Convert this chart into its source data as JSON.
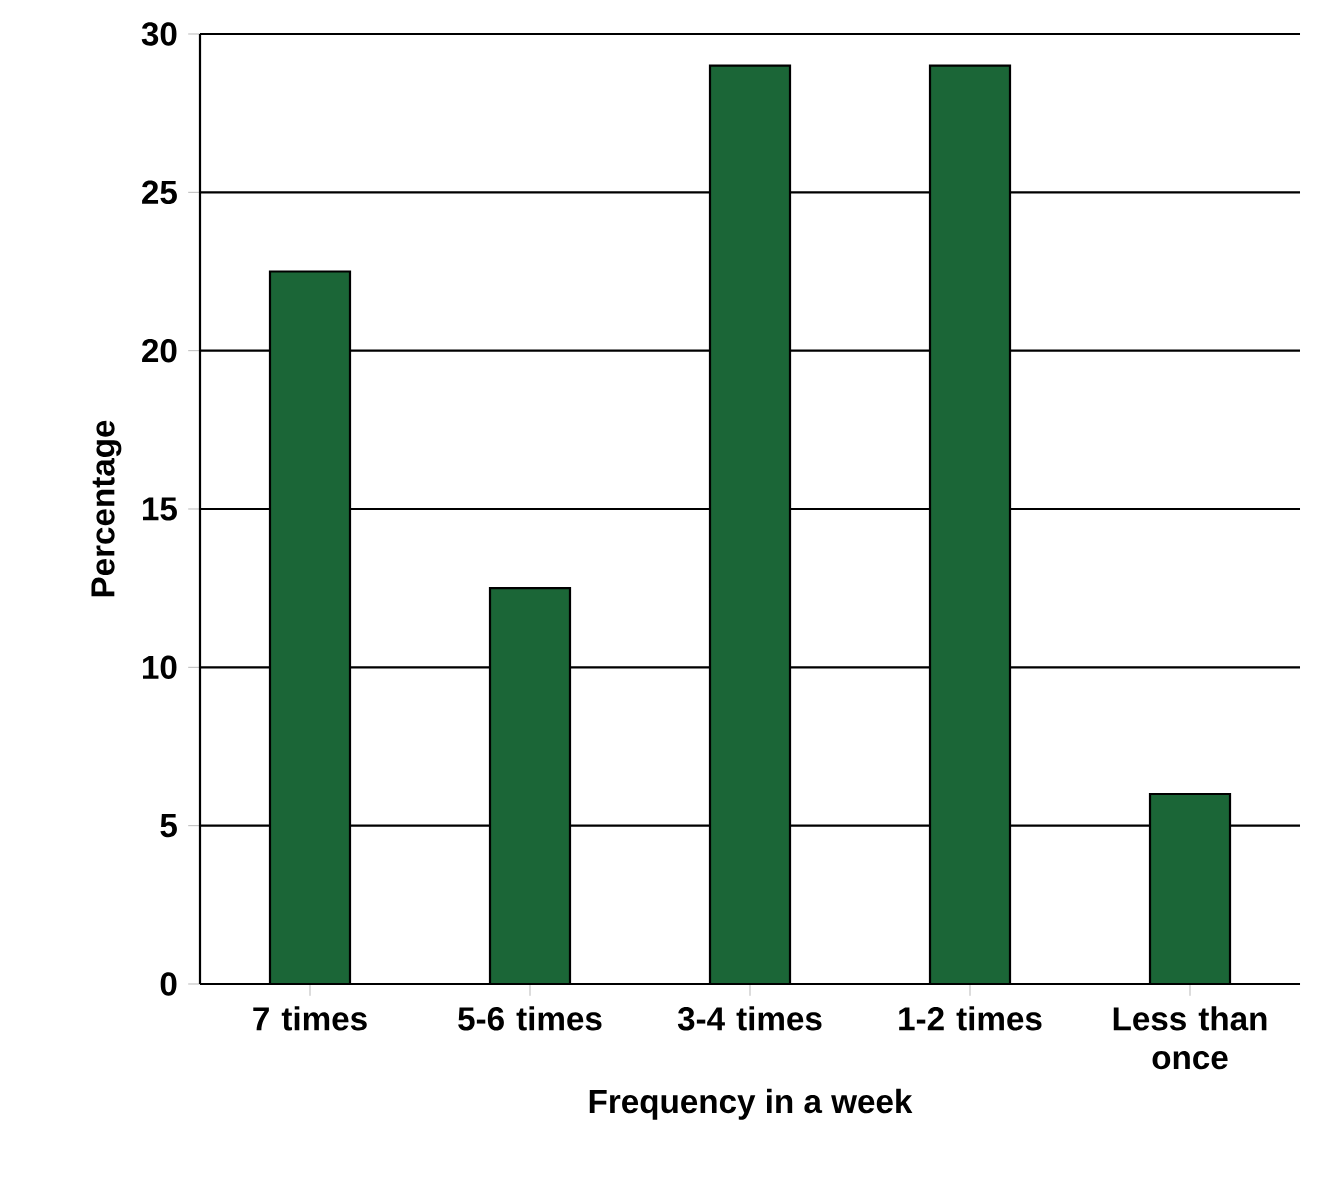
{
  "chart_data": {
    "type": "bar",
    "xlabel": "Frequency in a week",
    "ylabel": "Percentage",
    "categories": [
      "7 times",
      "5-6 times",
      "3-4 times",
      "1-2 times",
      "Less than once"
    ],
    "values": [
      22.5,
      12.5,
      29,
      29,
      6
    ],
    "color": "#1b6637",
    "ylim": [
      0,
      30
    ],
    "yticks": [
      0,
      5,
      10,
      15,
      20,
      25,
      30
    ],
    "grid": "y"
  }
}
